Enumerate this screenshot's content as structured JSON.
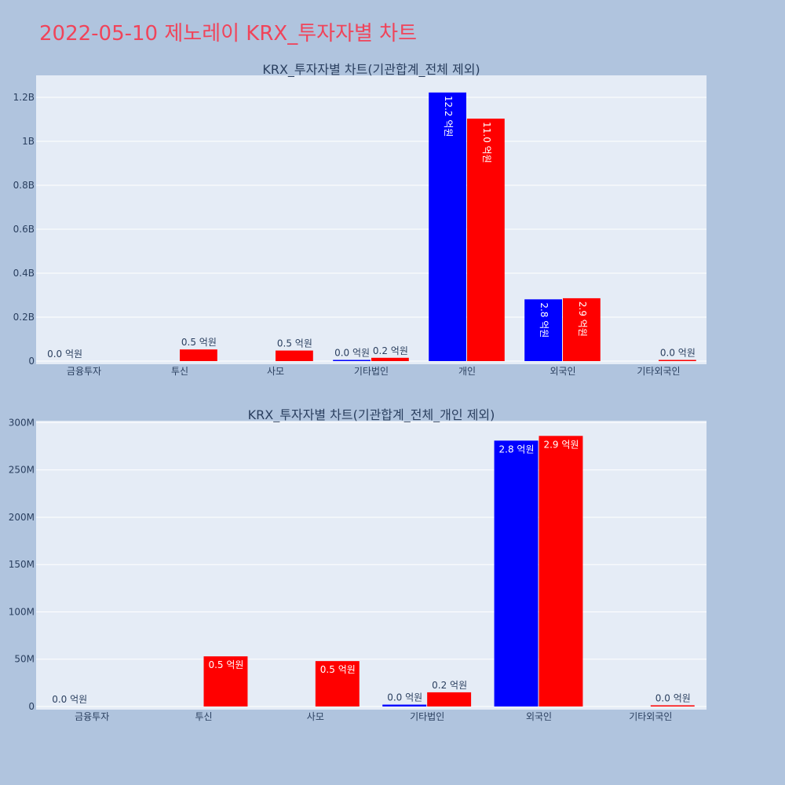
{
  "page": {
    "title": "2022-05-10 제노레이 KRX_투자자별 차트"
  },
  "colors": {
    "buy": "#0000ff",
    "sell": "#ff0000",
    "plot_bg": "#e5ecf6",
    "page_bg": "#b0c4de",
    "title": "#f0445a"
  },
  "chart_data": [
    {
      "type": "bar",
      "title": "KRX_투자자별 차트(기관합계_전체 제외)",
      "categories": [
        "금융투자",
        "투신",
        "사모",
        "기타법인",
        "개인",
        "외국인",
        "기타외국인"
      ],
      "ylim": [
        0,
        1300000000
      ],
      "yticks": [
        0,
        200000000,
        400000000,
        600000000,
        800000000,
        1000000000,
        1200000000
      ],
      "ytick_labels": [
        "0",
        "0.2B",
        "0.4B",
        "0.6B",
        "0.8B",
        "1B",
        "1.2B"
      ],
      "grid": true,
      "series": [
        {
          "color": "#0000ff",
          "values": [
            0,
            0,
            0,
            2000000,
            1222000000,
            281000000,
            0
          ],
          "labels": [
            "0.0 억원",
            "",
            "",
            "0.0 억원",
            "12.2 억원",
            "2.8 억원",
            ""
          ]
        },
        {
          "color": "#ff0000",
          "values": [
            0,
            53000000,
            48000000,
            15000000,
            1103000000,
            286000000,
            1000000
          ],
          "labels": [
            "",
            "0.5 억원",
            "0.5 억원",
            "0.2 억원",
            "11.0 억원",
            "2.9 억원",
            "0.0 억원"
          ]
        }
      ]
    },
    {
      "type": "bar",
      "title": "KRX_투자자별 차트(기관합계_전체_개인 제외)",
      "categories": [
        "금융투자",
        "투신",
        "사모",
        "기타법인",
        "외국인",
        "기타외국인"
      ],
      "ylim": [
        0,
        302000000
      ],
      "yticks": [
        0,
        50000000,
        100000000,
        150000000,
        200000000,
        250000000,
        300000000
      ],
      "ytick_labels": [
        "0",
        "50M",
        "100M",
        "150M",
        "200M",
        "250M",
        "300M"
      ],
      "grid": true,
      "series": [
        {
          "color": "#0000ff",
          "values": [
            0,
            0,
            0,
            2000000,
            281000000,
            0
          ],
          "labels": [
            "0.0 억원",
            "",
            "",
            "0.0 억원",
            "2.8 억원",
            ""
          ]
        },
        {
          "color": "#ff0000",
          "values": [
            0,
            53000000,
            48000000,
            15000000,
            286000000,
            1000000
          ],
          "labels": [
            "",
            "0.5 억원",
            "0.5 억원",
            "0.2 억원",
            "2.9 억원",
            "0.0 억원"
          ]
        }
      ]
    }
  ]
}
